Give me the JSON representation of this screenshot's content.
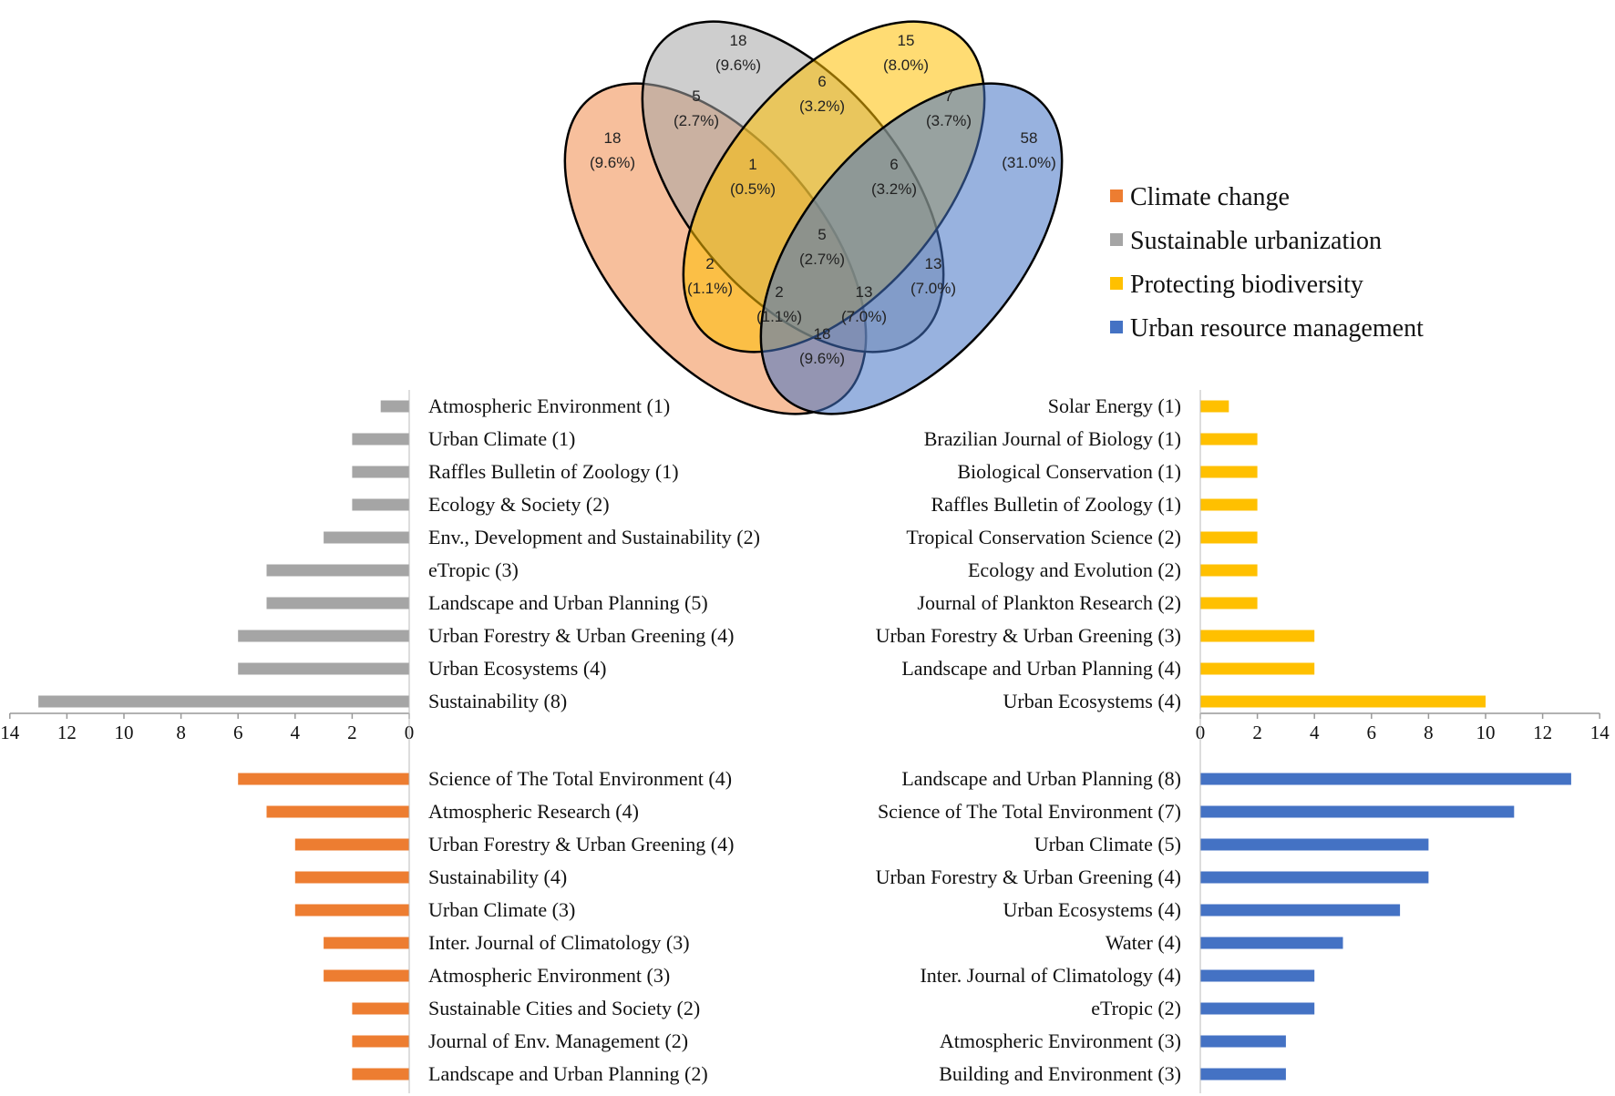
{
  "venn": {
    "sets": [
      {
        "name": "Climate change",
        "color": "#f08a4b"
      },
      {
        "name": "Sustainable urbanization",
        "color": "#a5a5a5"
      },
      {
        "name": "Protecting biodiversity",
        "color": "#ffc000"
      },
      {
        "name": "Urban resource management",
        "color": "#4472c4"
      }
    ],
    "regions": [
      {
        "id": "sustainable-only",
        "count": "18",
        "pct": "(9.6%)"
      },
      {
        "id": "biodiversity-only",
        "count": "15",
        "pct": "(8.0%)"
      },
      {
        "id": "climate-sustainable",
        "count": "5",
        "pct": "(2.7%)"
      },
      {
        "id": "sustainable-biodiversity",
        "count": "6",
        "pct": "(3.2%)"
      },
      {
        "id": "biodiversity-resource",
        "count": "7",
        "pct": "(3.7%)"
      },
      {
        "id": "climate-only",
        "count": "18",
        "pct": "(9.6%)"
      },
      {
        "id": "climate-sustainable-biodiversity",
        "count": "1",
        "pct": "(0.5%)"
      },
      {
        "id": "sustainable-biodiversity-resource",
        "count": "6",
        "pct": "(3.2%)"
      },
      {
        "id": "resource-only",
        "count": "58",
        "pct": "(31.0%)"
      },
      {
        "id": "all-four",
        "count": "5",
        "pct": "(2.7%)"
      },
      {
        "id": "climate-biodiversity",
        "count": "2",
        "pct": "(1.1%)"
      },
      {
        "id": "sustainable-resource",
        "count": "13",
        "pct": "(7.0%)"
      },
      {
        "id": "climate-biodiversity-resource",
        "count": "2",
        "pct": "(1.1%)"
      },
      {
        "id": "climate-sustainable-resource",
        "count": "13",
        "pct": "(7.0%)"
      },
      {
        "id": "climate-resource",
        "count": "18",
        "pct": "(9.6%)"
      }
    ]
  },
  "chart_data": [
    {
      "type": "bar",
      "orientation": "horizontal-leftward",
      "series_name": "Sustainable urbanization",
      "color": "#a5a5a5",
      "categories": [
        "Atmospheric Environment (1)",
        "Urban Climate (1)",
        "Raffles Bulletin of Zoology (1)",
        "Ecology & Society (2)",
        "Env., Development and Sustainability (2)",
        "eTropic (3)",
        "Landscape and Urban Planning (5)",
        "Urban Forestry & Urban Greening (4)",
        "Urban Ecosystems (4)",
        "Sustainability (8)"
      ],
      "values": [
        1,
        2,
        2,
        2,
        3,
        5,
        5,
        6,
        6,
        13
      ],
      "xlim": [
        0,
        14
      ],
      "ticks": [
        "14",
        "12",
        "10",
        "8",
        "6",
        "4",
        "2",
        "0"
      ]
    },
    {
      "type": "bar",
      "orientation": "horizontal",
      "series_name": "Protecting biodiversity",
      "color": "#ffc000",
      "categories": [
        "Solar Energy (1)",
        "Brazilian Journal of Biology (1)",
        "Biological Conservation (1)",
        "Raffles Bulletin of Zoology (1)",
        "Tropical Conservation Science (2)",
        "Ecology and Evolution (2)",
        "Journal of Plankton Research (2)",
        "Urban Forestry & Urban Greening (3)",
        "Landscape and Urban Planning (4)",
        "Urban Ecosystems (4)"
      ],
      "values": [
        1,
        2,
        2,
        2,
        2,
        2,
        2,
        4,
        4,
        10
      ],
      "xlim": [
        0,
        14
      ],
      "ticks": [
        "0",
        "2",
        "4",
        "6",
        "8",
        "10",
        "12",
        "14"
      ]
    },
    {
      "type": "bar",
      "orientation": "horizontal-leftward",
      "series_name": "Climate change",
      "color": "#ed7d31",
      "categories": [
        "Science of The Total Environment (4)",
        "Atmospheric Research (4)",
        "Urban Forestry & Urban Greening (4)",
        "Sustainability (4)",
        "Urban Climate (3)",
        "Inter. Journal of Climatology (3)",
        "Atmospheric Environment (3)",
        "Sustainable Cities and Society (2)",
        "Journal of Env. Management (2)",
        "Landscape and Urban Planning (2)"
      ],
      "values": [
        6,
        5,
        4,
        4,
        4,
        3,
        3,
        2,
        2,
        2
      ],
      "xlim": [
        0,
        14
      ]
    },
    {
      "type": "bar",
      "orientation": "horizontal",
      "series_name": "Urban resource management",
      "color": "#4472c4",
      "categories": [
        "Landscape and Urban Planning (8)",
        "Science of The Total Environment (7)",
        "Urban Climate (5)",
        "Urban Forestry & Urban Greening (4)",
        "Urban Ecosystems (4)",
        "Water (4)",
        "Inter. Journal of Climatology (4)",
        "eTropic (2)",
        "Atmospheric Environment (3)",
        "Building and Environment (3)"
      ],
      "values": [
        13,
        11,
        8,
        8,
        7,
        5,
        4,
        4,
        3,
        3
      ],
      "xlim": [
        0,
        14
      ]
    }
  ]
}
